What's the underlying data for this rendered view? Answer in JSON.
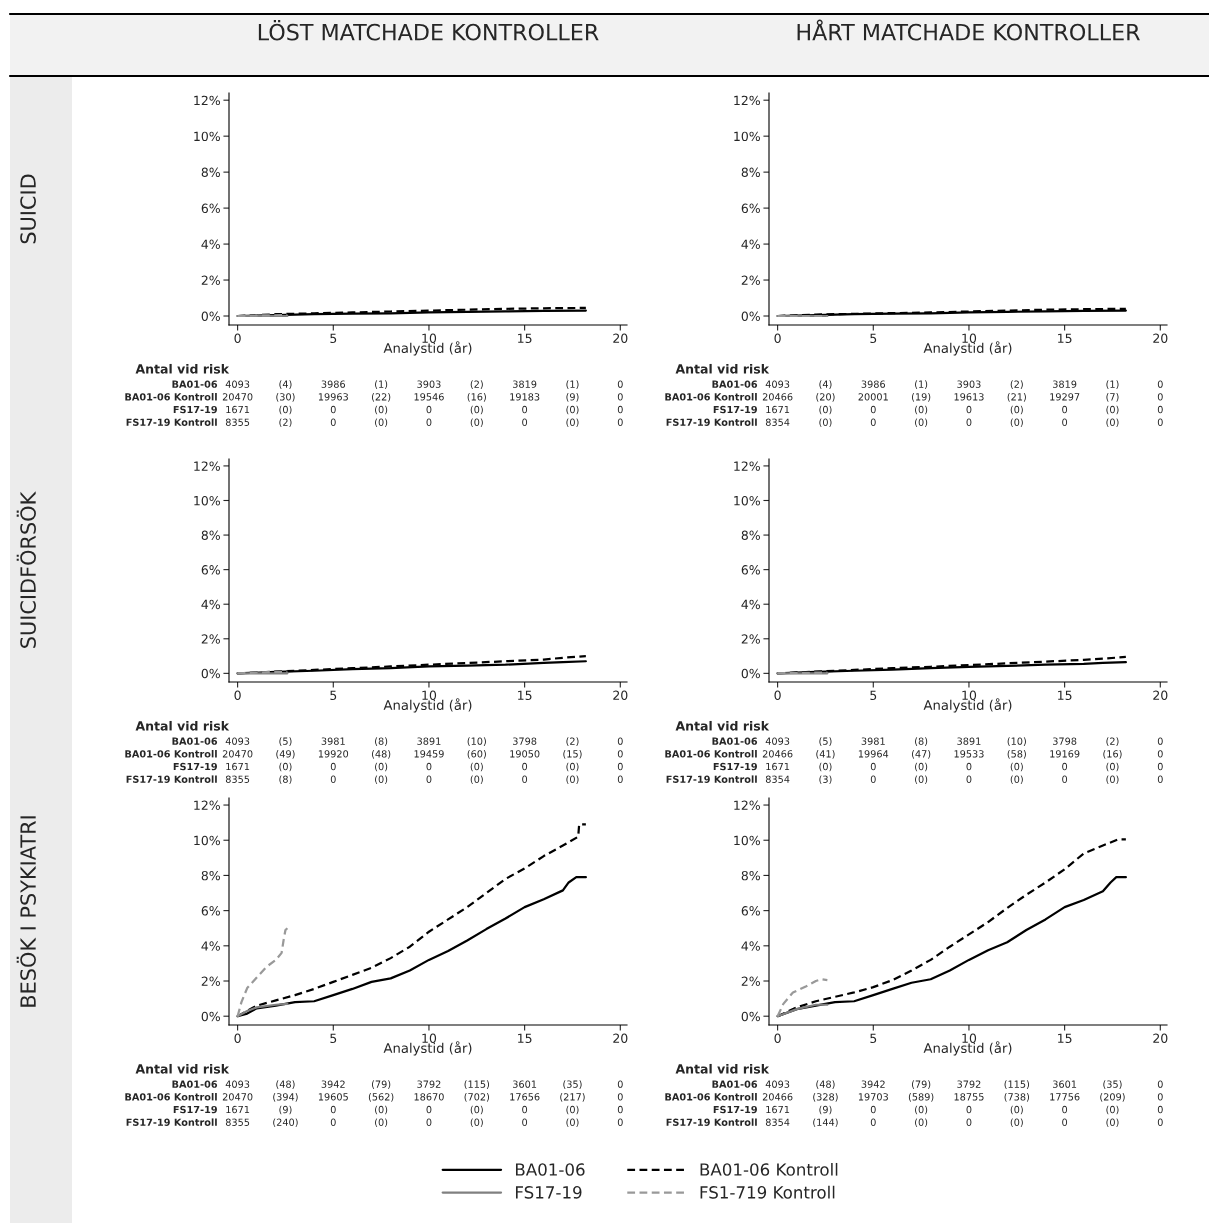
{
  "chart_data": [
    {
      "type": "line",
      "title": "LÖST MATCHADE KONTROLLER",
      "ylabel": "SUICID",
      "xlabel": "Analystid (år)",
      "xlim": [
        -0.45,
        20.35
      ],
      "ylim": [
        -0.5,
        12.4
      ],
      "xticks": [
        0,
        5,
        10,
        15,
        20
      ],
      "yticks": [
        {
          "value": 0,
          "label": "0%"
        },
        {
          "value": 2,
          "label": "2%"
        },
        {
          "value": 4,
          "label": "4%"
        },
        {
          "value": 6,
          "label": "6%"
        },
        {
          "value": 8,
          "label": "8%"
        },
        {
          "value": 10,
          "label": "10%"
        },
        {
          "value": 12,
          "label": "12%"
        }
      ],
      "legend": false,
      "series": [
        {
          "color": "#000000",
          "line_style": "solid",
          "x": [
            0,
            2,
            4,
            6,
            8,
            10,
            12,
            14,
            16,
            18.2
          ],
          "values": [
            0,
            0.05,
            0.1,
            0.13,
            0.15,
            0.2,
            0.23,
            0.26,
            0.28,
            0.3
          ]
        },
        {
          "color": "#000000",
          "line_style": "dashed",
          "x": [
            0,
            2,
            4,
            6,
            8,
            10,
            12,
            14,
            16,
            18.2
          ],
          "values": [
            0,
            0.1,
            0.15,
            0.2,
            0.25,
            0.3,
            0.35,
            0.4,
            0.43,
            0.45
          ]
        },
        {
          "color": "#808080",
          "line_style": "solid",
          "x": [
            0,
            2.6
          ],
          "values": [
            0,
            0
          ]
        },
        {
          "color": "#999999",
          "line_style": "dashed",
          "x": [
            0,
            1,
            2.6
          ],
          "values": [
            0,
            0.03,
            0.05
          ]
        }
      ],
      "annotations": [
        "Antal vid risk",
        "BA01-06",
        "4093",
        "(4)",
        "3986",
        "(1)",
        "3903",
        "(2)",
        "3819",
        "(1)",
        "0",
        "BA01-06 Kontroll",
        "20470",
        "(30)",
        "19963",
        "(22)",
        "19546",
        "(16)",
        "19183",
        "(9)",
        "0",
        "FS17-19",
        "1671",
        "(0)",
        "0",
        "(0)",
        "0",
        "(0)",
        "0",
        "(0)",
        "0",
        "FS17-19 Kontroll",
        "8355",
        "(2)",
        "0",
        "(0)",
        "0",
        "(0)",
        "0",
        "(0)",
        "0"
      ]
    },
    {
      "type": "line",
      "title": "HÅRT MATCHADE KONTROLLER",
      "xlabel": "Analystid (år)",
      "xlim": [
        -0.45,
        20.35
      ],
      "ylim": [
        -0.5,
        12.4
      ],
      "xticks": [
        0,
        5,
        10,
        15,
        20
      ],
      "yticks": [
        {
          "value": 0,
          "label": "0%"
        },
        {
          "value": 2,
          "label": "2%"
        },
        {
          "value": 4,
          "label": "4%"
        },
        {
          "value": 6,
          "label": "6%"
        },
        {
          "value": 8,
          "label": "8%"
        },
        {
          "value": 10,
          "label": "10%"
        },
        {
          "value": 12,
          "label": "12%"
        }
      ],
      "legend": false,
      "series": [
        {
          "color": "#000000",
          "line_style": "solid",
          "x": [
            0,
            2,
            4,
            6,
            8,
            10,
            12,
            14,
            16,
            18.2
          ],
          "values": [
            0,
            0.05,
            0.1,
            0.13,
            0.15,
            0.2,
            0.23,
            0.26,
            0.28,
            0.3
          ]
        },
        {
          "color": "#000000",
          "line_style": "dashed",
          "x": [
            0,
            2,
            4,
            6,
            8,
            10,
            12,
            14,
            16,
            18.2
          ],
          "values": [
            0,
            0.08,
            0.12,
            0.16,
            0.2,
            0.25,
            0.3,
            0.35,
            0.38,
            0.4
          ]
        },
        {
          "color": "#808080",
          "line_style": "solid",
          "x": [
            0,
            2.6
          ],
          "values": [
            0,
            0
          ]
        },
        {
          "color": "#999999",
          "line_style": "dashed",
          "x": [
            0,
            2.6
          ],
          "values": [
            0,
            0
          ]
        }
      ],
      "annotations": [
        "Antal vid risk",
        "BA01-06",
        "4093",
        "(4)",
        "3986",
        "(1)",
        "3903",
        "(2)",
        "3819",
        "(1)",
        "0",
        "BA01-06 Kontroll",
        "20466",
        "(20)",
        "20001",
        "(19)",
        "19613",
        "(21)",
        "19297",
        "(7)",
        "0",
        "FS17-19",
        "1671",
        "(0)",
        "0",
        "(0)",
        "0",
        "(0)",
        "0",
        "(0)",
        "0",
        "FS17-19 Kontroll",
        "8354",
        "(0)",
        "0",
        "(0)",
        "0",
        "(0)",
        "0",
        "(0)",
        "0"
      ]
    },
    {
      "type": "line",
      "ylabel": "SUICIDFÖRSÖK",
      "xlabel": "Analystid (år)",
      "xlim": [
        -0.45,
        20.35
      ],
      "ylim": [
        -0.5,
        12.4
      ],
      "xticks": [
        0,
        5,
        10,
        15,
        20
      ],
      "yticks": [
        {
          "value": 0,
          "label": "0%"
        },
        {
          "value": 2,
          "label": "2%"
        },
        {
          "value": 4,
          "label": "4%"
        },
        {
          "value": 6,
          "label": "6%"
        },
        {
          "value": 8,
          "label": "8%"
        },
        {
          "value": 10,
          "label": "10%"
        },
        {
          "value": 12,
          "label": "12%"
        }
      ],
      "legend": false,
      "series": [
        {
          "color": "#000000",
          "line_style": "solid",
          "x": [
            0,
            2,
            4,
            6,
            8,
            10,
            12,
            14,
            16,
            17,
            18.2
          ],
          "values": [
            0,
            0.08,
            0.15,
            0.25,
            0.3,
            0.4,
            0.45,
            0.5,
            0.6,
            0.65,
            0.7
          ]
        },
        {
          "color": "#000000",
          "line_style": "dashed",
          "x": [
            0,
            2,
            4,
            6,
            8,
            10,
            12,
            14,
            16,
            17,
            18.2
          ],
          "values": [
            0,
            0.1,
            0.2,
            0.3,
            0.4,
            0.5,
            0.6,
            0.7,
            0.8,
            0.9,
            1.0
          ]
        },
        {
          "color": "#808080",
          "line_style": "solid",
          "x": [
            0,
            2.6
          ],
          "values": [
            0,
            0
          ]
        },
        {
          "color": "#999999",
          "line_style": "dashed",
          "x": [
            0,
            1,
            2.6
          ],
          "values": [
            0,
            0.05,
            0.1
          ]
        }
      ],
      "annotations": [
        "Antal vid risk",
        "BA01-06",
        "4093",
        "(5)",
        "3981",
        "(8)",
        "3891",
        "(10)",
        "3798",
        "(2)",
        "0",
        "BA01-06 Kontroll",
        "20470",
        "(49)",
        "19920",
        "(48)",
        "19459",
        "(60)",
        "19050",
        "(15)",
        "0",
        "FS17-19",
        "1671",
        "(0)",
        "0",
        "(0)",
        "0",
        "(0)",
        "0",
        "(0)",
        "0",
        "FS17-19 Kontroll",
        "8355",
        "(8)",
        "0",
        "(0)",
        "0",
        "(0)",
        "0",
        "(0)",
        "0"
      ]
    },
    {
      "type": "line",
      "xlabel": "Analystid (år)",
      "xlim": [
        -0.45,
        20.35
      ],
      "ylim": [
        -0.5,
        12.4
      ],
      "xticks": [
        0,
        5,
        10,
        15,
        20
      ],
      "yticks": [
        {
          "value": 0,
          "label": "0%"
        },
        {
          "value": 2,
          "label": "2%"
        },
        {
          "value": 4,
          "label": "4%"
        },
        {
          "value": 6,
          "label": "6%"
        },
        {
          "value": 8,
          "label": "8%"
        },
        {
          "value": 10,
          "label": "10%"
        },
        {
          "value": 12,
          "label": "12%"
        }
      ],
      "legend": false,
      "series": [
        {
          "color": "#000000",
          "line_style": "solid",
          "x": [
            0,
            2,
            4,
            6,
            8,
            10,
            12,
            14,
            16,
            17,
            18.2
          ],
          "values": [
            0,
            0.08,
            0.15,
            0.22,
            0.3,
            0.38,
            0.43,
            0.5,
            0.55,
            0.6,
            0.65
          ]
        },
        {
          "color": "#000000",
          "line_style": "dashed",
          "x": [
            0,
            2,
            4,
            6,
            8,
            10,
            12,
            14,
            16,
            17,
            18.2
          ],
          "values": [
            0,
            0.1,
            0.2,
            0.3,
            0.38,
            0.48,
            0.58,
            0.68,
            0.78,
            0.85,
            0.95
          ]
        },
        {
          "color": "#808080",
          "line_style": "solid",
          "x": [
            0,
            2.6
          ],
          "values": [
            0,
            0
          ]
        },
        {
          "color": "#999999",
          "line_style": "dashed",
          "x": [
            0,
            2.6
          ],
          "values": [
            0,
            0.05
          ]
        }
      ],
      "annotations": [
        "Antal vid risk",
        "BA01-06",
        "4093",
        "(5)",
        "3981",
        "(8)",
        "3891",
        "(10)",
        "3798",
        "(2)",
        "0",
        "BA01-06 Kontroll",
        "20466",
        "(41)",
        "19964",
        "(47)",
        "19533",
        "(58)",
        "19169",
        "(16)",
        "0",
        "FS17-19",
        "1671",
        "(0)",
        "0",
        "(0)",
        "0",
        "(0)",
        "0",
        "(0)",
        "0",
        "FS17-19 Kontroll",
        "8354",
        "(3)",
        "0",
        "(0)",
        "0",
        "(0)",
        "0",
        "(0)",
        "0"
      ]
    },
    {
      "type": "line",
      "ylabel": "BESÖK I PSYKIATRI",
      "xlabel": "Analystid (år)",
      "xlim": [
        -0.45,
        20.35
      ],
      "ylim": [
        -0.5,
        12.4
      ],
      "xticks": [
        0,
        5,
        10,
        15,
        20
      ],
      "yticks": [
        {
          "value": 0,
          "label": "0%"
        },
        {
          "value": 2,
          "label": "2%"
        },
        {
          "value": 4,
          "label": "4%"
        },
        {
          "value": 6,
          "label": "6%"
        },
        {
          "value": 8,
          "label": "8%"
        },
        {
          "value": 10,
          "label": "10%"
        },
        {
          "value": 12,
          "label": "12%"
        }
      ],
      "legend": false,
      "series": [
        {
          "color": "#000000",
          "line_style": "solid",
          "x": [
            0,
            0.5,
            1,
            2,
            3,
            4,
            5,
            6,
            7,
            8,
            9,
            10,
            11,
            12,
            13,
            14,
            15,
            16,
            17,
            17.3,
            17.7,
            18.2
          ],
          "values": [
            0,
            0.15,
            0.45,
            0.6,
            0.8,
            0.85,
            1.2,
            1.55,
            1.95,
            2.15,
            2.6,
            3.2,
            3.7,
            4.3,
            4.95,
            5.55,
            6.2,
            6.65,
            7.15,
            7.6,
            7.9,
            7.9
          ]
        },
        {
          "color": "#000000",
          "line_style": "dashed",
          "x": [
            0,
            1,
            2,
            3,
            4,
            5,
            6,
            7,
            8,
            9,
            10,
            11,
            12,
            13,
            14,
            15,
            16,
            17,
            17.8,
            17.85,
            18.2
          ],
          "values": [
            0,
            0.6,
            0.9,
            1.2,
            1.55,
            1.95,
            2.35,
            2.75,
            3.3,
            3.95,
            4.8,
            5.5,
            6.2,
            7.0,
            7.8,
            8.4,
            9.1,
            9.7,
            10.2,
            10.9,
            10.9
          ]
        },
        {
          "color": "#808080",
          "line_style": "solid",
          "x": [
            0,
            0.5,
            1,
            2,
            2.6
          ],
          "values": [
            0,
            0.3,
            0.5,
            0.65,
            0.7
          ]
        },
        {
          "color": "#999999",
          "line_style": "dashed",
          "x": [
            0,
            0.2,
            0.5,
            1,
            1.5,
            2,
            2.3,
            2.4,
            2.5,
            2.6
          ],
          "values": [
            0,
            0.8,
            1.6,
            2.2,
            2.8,
            3.2,
            3.6,
            4.3,
            4.9,
            5.0
          ]
        }
      ],
      "annotations": [
        "Antal vid risk",
        "BA01-06",
        "4093",
        "(48)",
        "3942",
        "(79)",
        "3792",
        "(115)",
        "3601",
        "(35)",
        "0",
        "BA01-06 Kontroll",
        "20470",
        "(394)",
        "19605",
        "(562)",
        "18670",
        "(702)",
        "17656",
        "(217)",
        "0",
        "FS17-19",
        "1671",
        "(9)",
        "0",
        "(0)",
        "0",
        "(0)",
        "0",
        "(0)",
        "0",
        "FS17-19 Kontroll",
        "8355",
        "(240)",
        "0",
        "(0)",
        "0",
        "(0)",
        "0",
        "(0)",
        "0"
      ]
    },
    {
      "xlabel": "Analystid (år)",
      "xlim": [
        -0.45,
        20.35
      ],
      "ylim": [
        -0.5,
        12.4
      ],
      "xticks": [
        0,
        5,
        10,
        15,
        20
      ],
      "yticks": [
        {
          "value": 0,
          "label": "0%"
        },
        {
          "value": 2,
          "label": "2%"
        },
        {
          "value": 4,
          "label": "4%"
        },
        {
          "value": 6,
          "label": "6%"
        },
        {
          "value": 8,
          "label": "8%"
        },
        {
          "value": 10,
          "label": "10%"
        },
        {
          "value": 12,
          "label": "12%"
        }
      ],
      "type": "line",
      "legend": "bottom",
      "series": [
        {
          "name": "BA01-06",
          "color": "#000000",
          "line_style": "solid",
          "x": [
            0,
            1,
            2,
            3,
            4,
            5,
            6,
            7,
            8,
            9,
            10,
            11,
            12,
            13,
            14,
            15,
            16,
            17,
            17.4,
            17.7,
            18.2
          ],
          "values": [
            0,
            0.4,
            0.6,
            0.8,
            0.85,
            1.2,
            1.55,
            1.9,
            2.1,
            2.6,
            3.2,
            3.75,
            4.2,
            4.9,
            5.5,
            6.2,
            6.6,
            7.1,
            7.6,
            7.9,
            7.9
          ]
        },
        {
          "name": "BA01-06 Kontroll",
          "color": "#000000",
          "line_style": "dashed",
          "x": [
            0,
            1,
            2,
            3,
            4,
            5,
            6,
            7,
            8,
            9,
            10,
            11,
            12,
            13,
            14,
            15,
            16,
            17,
            17.8,
            18.2
          ],
          "values": [
            0,
            0.5,
            0.85,
            1.1,
            1.35,
            1.65,
            2.05,
            2.6,
            3.2,
            3.95,
            4.65,
            5.35,
            6.15,
            6.9,
            7.6,
            8.35,
            9.25,
            9.7,
            10.05,
            10.05
          ]
        },
        {
          "name": "FS17-19",
          "color": "#808080",
          "line_style": "solid",
          "x": [
            0,
            1,
            2,
            2.6
          ],
          "values": [
            0,
            0.4,
            0.65,
            0.65
          ]
        },
        {
          "name": "FS1-719 Kontroll",
          "color": "#999999",
          "line_style": "dashed",
          "x": [
            0,
            0.3,
            0.8,
            1.5,
            2,
            2.3,
            2.6
          ],
          "values": [
            0,
            0.7,
            1.35,
            1.7,
            2.0,
            2.1,
            2.05
          ]
        }
      ],
      "annotations": [
        "Antal vid risk",
        "BA01-06",
        "4093",
        "(48)",
        "3942",
        "(79)",
        "3792",
        "(115)",
        "3601",
        "(35)",
        "0",
        "BA01-06 Kontroll",
        "20466",
        "(328)",
        "19703",
        "(589)",
        "18755",
        "(738)",
        "17756",
        "(209)",
        "0",
        "FS17-19",
        "1671",
        "(9)",
        "0",
        "(0)",
        "0",
        "(0)",
        "0",
        "(0)",
        "0",
        "FS17-19 Kontroll",
        "8354",
        "(144)",
        "0",
        "(0)",
        "0",
        "(0)",
        "0",
        "(0)",
        "0"
      ]
    }
  ]
}
